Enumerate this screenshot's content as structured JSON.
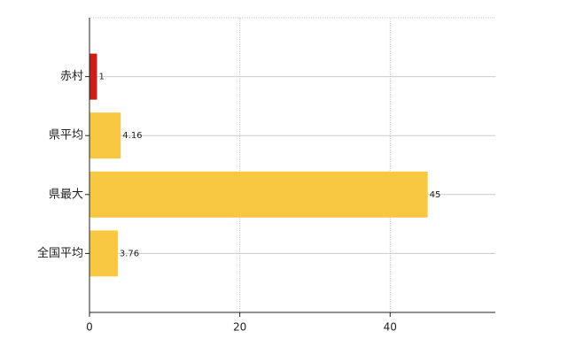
{
  "chart_data": {
    "type": "hbar",
    "categories": [
      "赤村",
      "県平均",
      "県最大",
      "全国平均"
    ],
    "values": [
      1,
      4.16,
      45,
      3.76
    ],
    "colors": [
      "#cc1f1a",
      "#f8c843",
      "#f8c843",
      "#f8c843"
    ],
    "xlim": [
      0,
      54
    ],
    "xticks": [
      0,
      20,
      40
    ],
    "grid": true,
    "data_labels": true
  }
}
